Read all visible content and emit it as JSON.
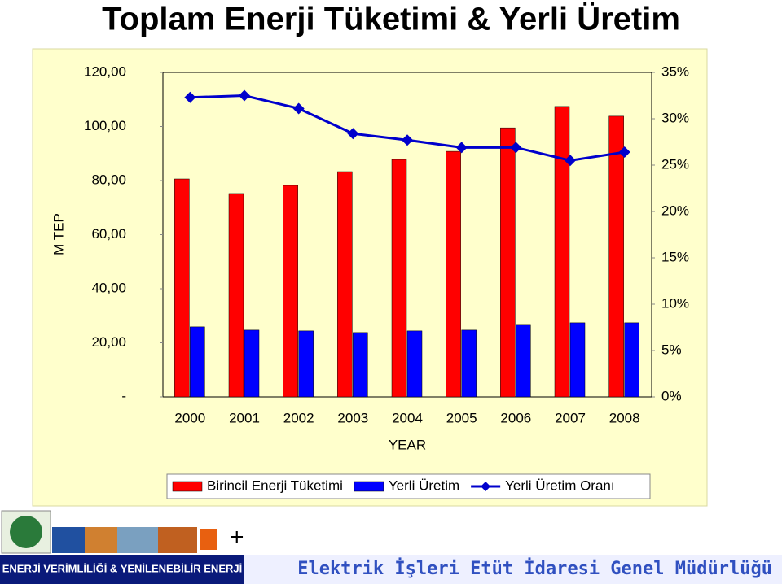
{
  "chart_data": {
    "type": "bar",
    "title": "Toplam Enerji Tüketimi & Yerli Üretim",
    "x_label": "YEAR",
    "y_label": "M TEP",
    "categories": [
      "2000",
      "2001",
      "2002",
      "2003",
      "2004",
      "2005",
      "2006",
      "2007",
      "2008"
    ],
    "series": [
      {
        "name": "Birincil Enerji Tüketimi",
        "type": "bar",
        "color": "#ff0000",
        "values": [
          80.6,
          75.2,
          78.2,
          83.3,
          87.8,
          90.8,
          99.5,
          107.4,
          103.8
        ]
      },
      {
        "name": "Yerli Üretim",
        "type": "bar",
        "color": "#0000ff",
        "values": [
          25.9,
          24.7,
          24.4,
          23.8,
          24.4,
          24.7,
          26.8,
          27.4,
          27.4
        ]
      },
      {
        "name": "Yerli Üretim Oranı",
        "type": "line",
        "axis": "y2",
        "color": "#0000cc",
        "values": [
          32.3,
          32.5,
          31.1,
          28.4,
          27.7,
          26.9,
          26.9,
          25.5,
          26.4
        ]
      }
    ],
    "ylim": [
      0,
      120
    ],
    "yticks": [
      {
        "value": 0,
        "label": "-"
      },
      {
        "value": 20,
        "label": "20,00"
      },
      {
        "value": 40,
        "label": "40,00"
      },
      {
        "value": 60,
        "label": "60,00"
      },
      {
        "value": 80,
        "label": "80,00"
      },
      {
        "value": 100,
        "label": "100,00"
      },
      {
        "value": 120,
        "label": "120,00"
      }
    ],
    "y2lim": [
      0,
      35
    ],
    "y2ticks": [
      {
        "value": 0,
        "label": "0%"
      },
      {
        "value": 5,
        "label": "5%"
      },
      {
        "value": 10,
        "label": "10%"
      },
      {
        "value": 15,
        "label": "15%"
      },
      {
        "value": 20,
        "label": "20%"
      },
      {
        "value": 25,
        "label": "25%"
      },
      {
        "value": 30,
        "label": "30%"
      },
      {
        "value": 35,
        "label": "35%"
      }
    ],
    "grid": false,
    "legend": "bottom"
  },
  "footer": {
    "left": "ENERJİ VERİMLİLİĞİ & YENİLENEBİLİR ENERJİ",
    "right": "Elektrik İşleri Etüt İdaresi Genel Müdürlüğü"
  }
}
